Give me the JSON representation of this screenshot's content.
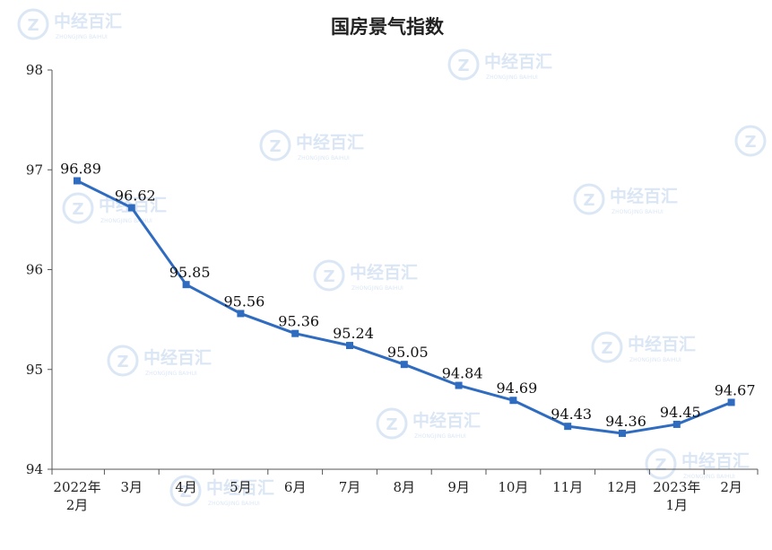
{
  "chart_data": {
    "type": "line",
    "title": "国房景气指数",
    "xlabel": "",
    "ylabel": "",
    "categories": [
      "2022年\n2月",
      "3月",
      "4月",
      "5月",
      "6月",
      "7月",
      "8月",
      "9月",
      "10月",
      "11月",
      "12月",
      "2023年\n1月",
      "2月"
    ],
    "series": [
      {
        "values": [
          96.89,
          96.62,
          95.85,
          95.56,
          95.36,
          95.24,
          95.05,
          94.84,
          94.69,
          94.43,
          94.36,
          94.45,
          94.67
        ]
      }
    ],
    "ylim": [
      94,
      98
    ],
    "yticks": [
      94,
      95,
      96,
      97,
      98
    ],
    "grid": false,
    "data_labels": true,
    "colors": {
      "line": "#2f6cc0",
      "marker": "#2f6cc0",
      "axis": "#555555"
    }
  },
  "watermark": {
    "text": "中经百汇",
    "subtext": "ZHONGJING BAIHUI",
    "icon": "zjbh-logo-icon"
  }
}
